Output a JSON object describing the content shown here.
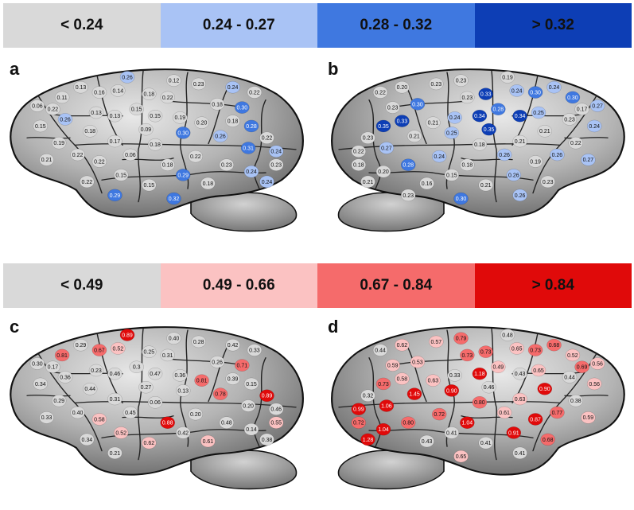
{
  "legends": {
    "blue": [
      {
        "label": "< 0.24",
        "color": "#d9d9d9"
      },
      {
        "label": "0.24 - 0.27",
        "color": "#a9c3f5"
      },
      {
        "label": "0.28 - 0.32",
        "color": "#3f78e0"
      },
      {
        "label": "> 0.32",
        "color": "#0d3eb5"
      }
    ],
    "red": [
      {
        "label": "< 0.49",
        "color": "#d9d9d9"
      },
      {
        "label": "0.49 - 0.66",
        "color": "#fbc2c2"
      },
      {
        "label": "0.67 - 0.84",
        "color": "#f56b6b"
      },
      {
        "label": "> 0.84",
        "color": "#e00a0a"
      }
    ]
  },
  "panels": [
    {
      "letter": "a",
      "scheme": "blue",
      "hemisphere": "left",
      "nodes": [
        "0.26",
        "0.12",
        "0.23",
        "0.13",
        "0.16",
        "0.14",
        "0.18",
        "0.11",
        "0.22",
        "0.24",
        "0.22",
        "0.18",
        "0.06",
        "0.22",
        "0.30",
        "0.15",
        "0.13",
        "0.26",
        "0.13",
        "0.15",
        "0.19",
        "0.20",
        "0.18",
        "0.28",
        "0.15",
        "0.18",
        "0.09",
        "0.30",
        "0.26",
        "0.22",
        "0.19",
        "0.17",
        "0.18",
        "0.31",
        "0.22",
        "0.06",
        "0.22",
        "0.24",
        "0.21",
        "0.22",
        "0.18",
        "0.23",
        "0.23",
        "0.15",
        "0.29",
        "0.24",
        "0.22",
        "0.15",
        "0.18",
        "0.24",
        "0.29",
        "0.32"
      ]
    },
    {
      "letter": "b",
      "scheme": "blue",
      "hemisphere": "right",
      "nodes": [
        "0.19",
        "0.23",
        "0.23",
        "0.24",
        "0.30",
        "0.24",
        "0.33",
        "0.30",
        "0.23",
        "0.20",
        "0.22",
        "0.30",
        "0.27",
        "0.17",
        "0.23",
        "0.28",
        "0.25",
        "0.23",
        "0.34",
        "0.34",
        "0.24",
        "0.21",
        "0.33",
        "0.35",
        "0.24",
        "0.21",
        "0.35",
        "0.25",
        "0.21",
        "0.23",
        "0.22",
        "0.21",
        "0.18",
        "0.27",
        "0.26",
        "0.26",
        "0.24",
        "0.22",
        "0.27",
        "0.19",
        "0.18",
        "0.28",
        "0.18",
        "0.26",
        "0.15",
        "0.20",
        "0.23",
        "0.21",
        "0.16",
        "0.21",
        "0.26",
        "0.30",
        "0.23"
      ]
    },
    {
      "letter": "c",
      "scheme": "red",
      "hemisphere": "left",
      "nodes": [
        "0.89",
        "0.40",
        "0.28",
        "0.29",
        "0.67",
        "0.52",
        "0.25",
        "0.81",
        "0.31",
        "0.42",
        "0.33",
        "0.26",
        "0.30",
        "0.17",
        "0.71",
        "0.3",
        "0.23",
        "0.36",
        "0.46",
        "0.47",
        "0.36",
        "0.81",
        "0.39",
        "0.15",
        "0.34",
        "0.44",
        "0.27",
        "0.13",
        "0.78",
        "0.89",
        "0.29",
        "0.31",
        "0.06",
        "0.20",
        "0.40",
        "0.45",
        "0.20",
        "0.46",
        "0.33",
        "0.58",
        "0.88",
        "0.48",
        "0.55",
        "0.52",
        "0.42",
        "0.14",
        "0.34",
        "0.62",
        "0.61",
        "0.38",
        "0.21"
      ]
    },
    {
      "letter": "d",
      "scheme": "red",
      "hemisphere": "right",
      "nodes": [
        "0.48",
        "0.79",
        "0.57",
        "0.68",
        "0.73",
        "0.65",
        "0.73",
        "0.52",
        "0.73",
        "0.62",
        "0.44",
        "0.53",
        "0.56",
        "0.69",
        "0.59",
        "0.49",
        "0.65",
        "0.44",
        "0.43",
        "1.18",
        "0.33",
        "0.63",
        "0.58",
        "0.73",
        "0.56",
        "0.90",
        "0.46",
        "0.90",
        "1.45",
        "0.32",
        "0.38",
        "0.63",
        "0.80",
        "1.06",
        "0.77",
        "0.61",
        "0.72",
        "0.99",
        "0.59",
        "0.87",
        "1.04",
        "0.80",
        "0.72",
        "0.91",
        "0.41",
        "1.04",
        "0.68",
        "0.41",
        "0.43",
        "1.28",
        "0.41",
        "0.65"
      ]
    }
  ]
}
